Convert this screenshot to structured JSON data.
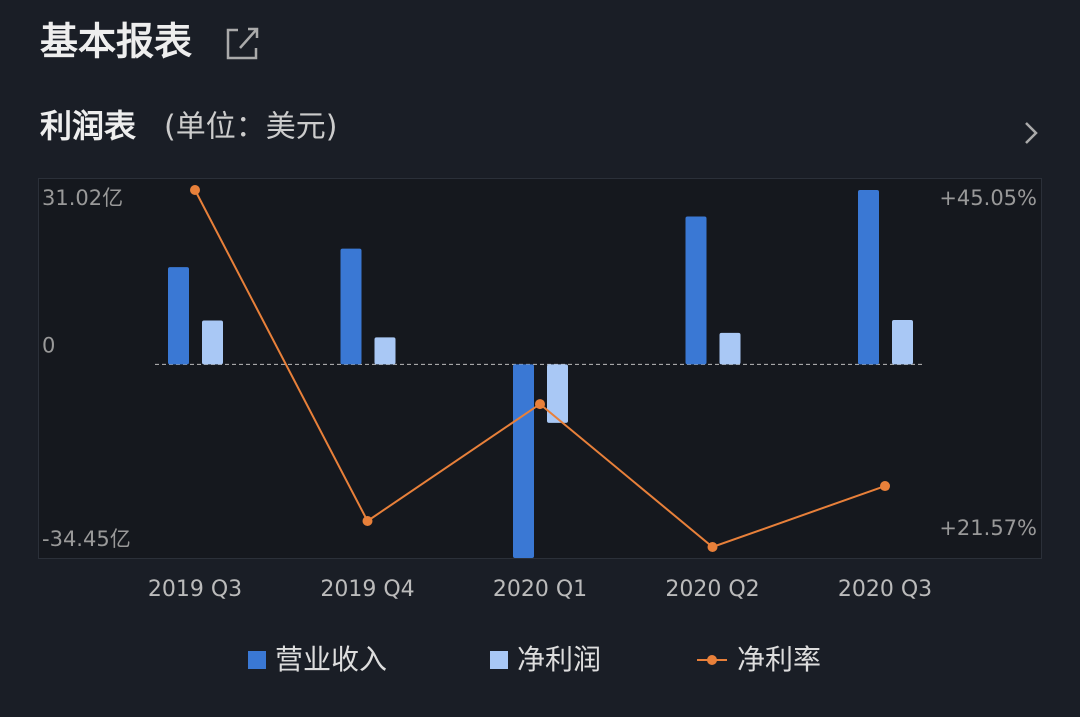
{
  "header": {
    "title": "基本报表"
  },
  "section": {
    "title": "利润表",
    "unit": "(单位：美元)"
  },
  "chart_data": {
    "type": "bar",
    "categories": [
      "2019 Q3",
      "2019 Q4",
      "2020 Q1",
      "2020 Q2",
      "2020 Q3"
    ],
    "series": [
      {
        "name": "营业收入",
        "type": "bar",
        "color": "#3a78d4",
        "values": [
          17.3,
          20.6,
          -34.45,
          26.3,
          31.02
        ]
      },
      {
        "name": "净利润",
        "type": "bar",
        "color": "#a9c8f5",
        "values": [
          7.8,
          4.8,
          -10.4,
          5.6,
          7.9
        ]
      },
      {
        "name": "净利率",
        "type": "line",
        "axis": "y2",
        "color": "#e8803a",
        "values": [
          45.05,
          23.28,
          30.97,
          21.57,
          25.58
        ]
      }
    ],
    "ylim": [
      -34.45,
      31.02
    ],
    "yticks": [
      {
        "value": 31.02,
        "label": "31.02亿"
      },
      0,
      {
        "value": -34.45,
        "label": "-34.45亿"
      }
    ],
    "y2lim": [
      21.57,
      45.05
    ],
    "y2ticks": [
      {
        "value": 45.05,
        "label": "+45.05%"
      },
      {
        "value": 21.57,
        "label": "+21.57%"
      }
    ]
  }
}
